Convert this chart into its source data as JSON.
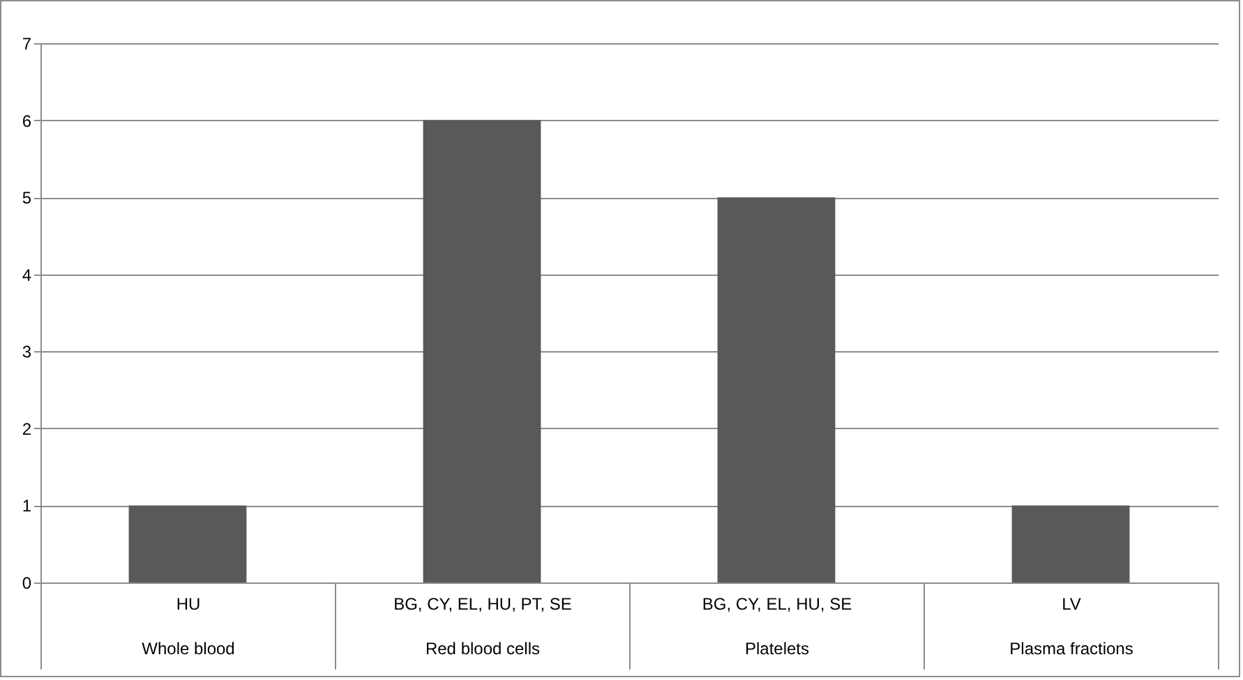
{
  "chart_data": {
    "type": "bar",
    "categories": [
      "HU\nWhole blood",
      "BG, CY, EL, HU, PT, SE\nRed blood cells",
      "BG, CY, EL, HU, SE\nPlatelets",
      "LV\nPlasma fractions"
    ],
    "values": [
      1,
      6,
      5,
      1
    ],
    "color": "#595959",
    "ylim": [
      0,
      7
    ],
    "yticks": [
      0,
      1,
      2,
      3,
      4,
      5,
      6,
      7
    ],
    "grid": "y"
  }
}
